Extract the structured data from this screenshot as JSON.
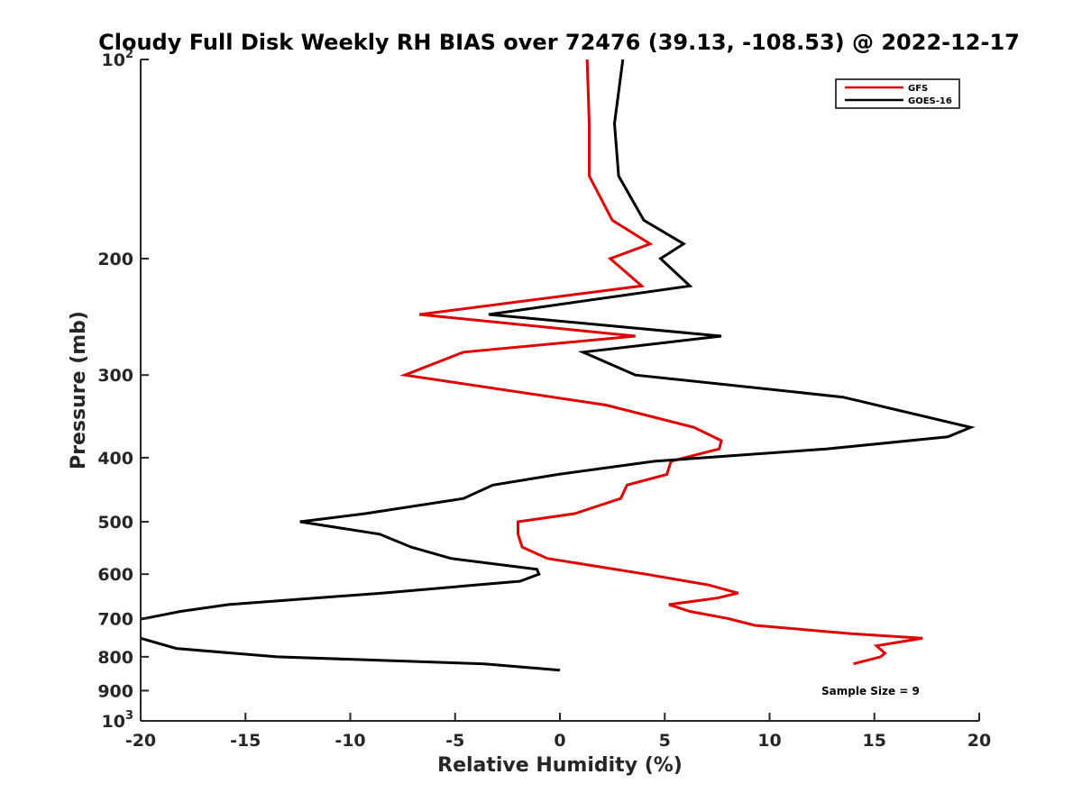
{
  "chart_data": {
    "type": "line",
    "title": "Cloudy Full Disk Weekly RH BIAS over 72476 (39.13, -108.53) @ 2022-12-17",
    "xlabel": "Relative Humidity (%)",
    "ylabel": "Pressure (mb)",
    "xlim": [
      -20,
      20
    ],
    "ylim": [
      100,
      1000
    ],
    "y_scale": "log",
    "y_reversed": true,
    "x_ticks": [
      "-20",
      "-15",
      "-10",
      "-5",
      "0",
      "5",
      "10",
      "15",
      "20"
    ],
    "x_tick_values": [
      -20,
      -15,
      -10,
      -5,
      0,
      5,
      10,
      15,
      20
    ],
    "y_ticks": [
      {
        "value": 100,
        "base": "10",
        "exp": "2"
      },
      {
        "value": 200,
        "label": "200"
      },
      {
        "value": 300,
        "label": "300"
      },
      {
        "value": 400,
        "label": "400"
      },
      {
        "value": 500,
        "label": "500"
      },
      {
        "value": 600,
        "label": "600"
      },
      {
        "value": 700,
        "label": "700"
      },
      {
        "value": 800,
        "label": "800"
      },
      {
        "value": 900,
        "label": "900"
      },
      {
        "value": 1000,
        "base": "10",
        "exp": "3"
      }
    ],
    "legend_position": "top-right",
    "grid": false,
    "annotation": "Sample Size = 9",
    "series": [
      {
        "name": "GFS",
        "color": "#e00000",
        "points": [
          [
            1.3,
            100
          ],
          [
            1.4,
            125
          ],
          [
            1.4,
            150
          ],
          [
            2.5,
            175
          ],
          [
            4.3,
            190
          ],
          [
            2.4,
            200
          ],
          [
            3.9,
            220
          ],
          [
            -6.7,
            243
          ],
          [
            3.6,
            262
          ],
          [
            -4.6,
            277
          ],
          [
            -7.4,
            300
          ],
          [
            2.2,
            333
          ],
          [
            6.4,
            360
          ],
          [
            7.7,
            377
          ],
          [
            7.6,
            388
          ],
          [
            5.3,
            405
          ],
          [
            5.1,
            424
          ],
          [
            3.2,
            440
          ],
          [
            2.9,
            461
          ],
          [
            0.7,
            486
          ],
          [
            -2.0,
            500
          ],
          [
            -2.0,
            522
          ],
          [
            -1.8,
            546
          ],
          [
            -0.6,
            568
          ],
          [
            4.1,
            600
          ],
          [
            7.1,
            623
          ],
          [
            8.5,
            641
          ],
          [
            7.5,
            652
          ],
          [
            5.2,
            667
          ],
          [
            6.2,
            683
          ],
          [
            8.0,
            700
          ],
          [
            9.3,
            717
          ],
          [
            13.9,
            738
          ],
          [
            17.3,
            750
          ],
          [
            15.1,
            770
          ],
          [
            15.5,
            790
          ],
          [
            15.3,
            800
          ],
          [
            14.0,
            820
          ]
        ]
      },
      {
        "name": "GOES-16",
        "color": "#000000",
        "points": [
          [
            3.0,
            100
          ],
          [
            2.6,
            125
          ],
          [
            2.8,
            150
          ],
          [
            4.0,
            175
          ],
          [
            5.9,
            190
          ],
          [
            4.8,
            200
          ],
          [
            6.2,
            220
          ],
          [
            -3.4,
            243
          ],
          [
            7.7,
            262
          ],
          [
            1.1,
            277
          ],
          [
            3.6,
            300
          ],
          [
            13.5,
            324
          ],
          [
            19.6,
            360
          ],
          [
            18.5,
            372
          ],
          [
            12.7,
            388
          ],
          [
            4.5,
            405
          ],
          [
            -0.1,
            424
          ],
          [
            -3.2,
            440
          ],
          [
            -4.6,
            461
          ],
          [
            -9.3,
            486
          ],
          [
            -12.4,
            500
          ],
          [
            -8.6,
            522
          ],
          [
            -7.1,
            546
          ],
          [
            -5.2,
            568
          ],
          [
            -1.1,
            590
          ],
          [
            -1.0,
            600
          ],
          [
            -1.9,
            615
          ],
          [
            -8.5,
            641
          ],
          [
            -15.8,
            667
          ],
          [
            -18.1,
            683
          ],
          [
            -19.8,
            700
          ],
          [
            -20.2,
            703
          ],
          [
            -20.0,
            750
          ],
          [
            -18.3,
            777
          ],
          [
            -13.5,
            800
          ],
          [
            -3.6,
            820
          ],
          [
            0.0,
            838
          ]
        ]
      }
    ]
  }
}
